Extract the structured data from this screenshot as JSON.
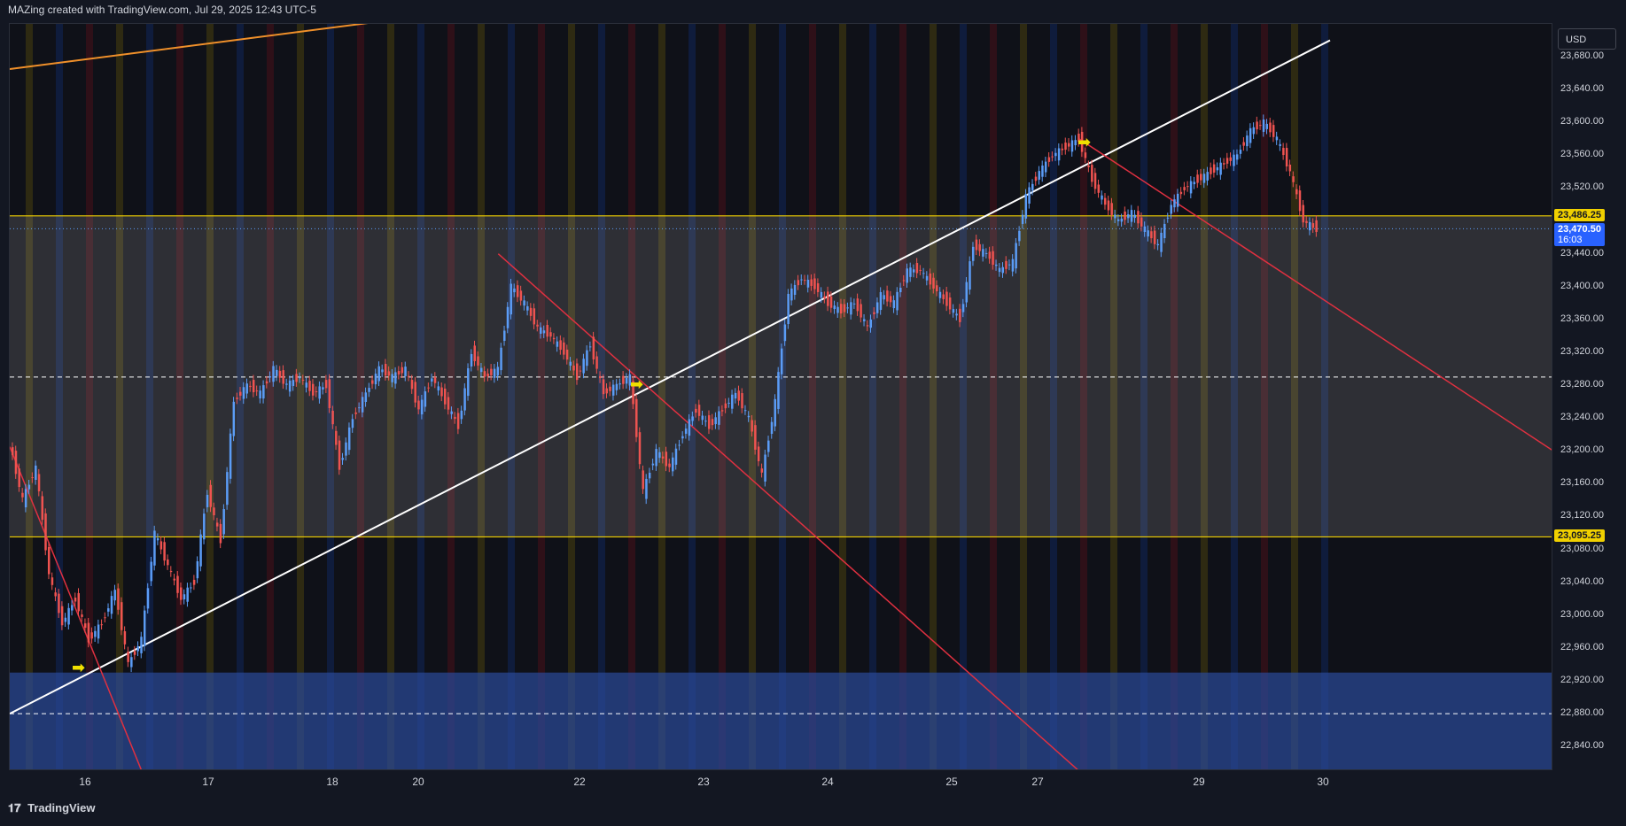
{
  "header": {
    "title": "MAZing created with TradingView.com, Jul 29, 2025 12:43 UTC-5"
  },
  "axis": {
    "currency": "USD"
  },
  "footer": {
    "brand": "TradingView",
    "logo_icon": "tradingview-logo-icon"
  },
  "colors": {
    "up": "#5b9cf6",
    "down": "#ef5350",
    "level": "#f0d000",
    "trend_white": "#ffffff",
    "trend_red": "#e03040",
    "trend_orange": "#f0902a",
    "blue_zone": "#2b4a9a"
  },
  "chart_data": {
    "type": "candlestick",
    "title": "",
    "xlabel": "",
    "ylabel": "",
    "ylim": [
      22810,
      23720
    ],
    "y_ticks": [
      "23,680.00",
      "23,640.00",
      "23,600.00",
      "23,560.00",
      "23,520.00",
      "23,440.00",
      "23,400.00",
      "23,360.00",
      "23,320.00",
      "23,280.00",
      "23,240.00",
      "23,200.00",
      "23,160.00",
      "23,120.00",
      "23,080.00",
      "23,040.00",
      "23,000.00",
      "22,960.00",
      "22,920.00",
      "22,880.00",
      "22,840.00"
    ],
    "x_ticks": [
      "16",
      "17",
      "18",
      "20",
      "22",
      "23",
      "24",
      "25",
      "27",
      "29",
      "30"
    ],
    "levels": [
      {
        "label": "23,486.25",
        "price": 23486.25,
        "color": "#f0d000"
      },
      {
        "label": "23,095.25",
        "price": 23095.25,
        "color": "#f0d000"
      }
    ],
    "last_price": {
      "label": "23,470.50",
      "countdown": "16:03",
      "price": 23470.5
    },
    "range_zone": {
      "top": 23486.25,
      "bottom": 23095.25,
      "mid_dashed": 23290
    },
    "demand_zone": {
      "top": 22930,
      "mid": 22880,
      "bottom": 22810
    },
    "trendlines": [
      {
        "name": "rising-support",
        "from": [
          0,
          22880
        ],
        "to": [
          100,
          23700
        ]
      },
      {
        "name": "orange-line",
        "from": [
          0,
          23665
        ],
        "to": [
          30,
          23727
        ]
      }
    ],
    "price_path": [
      [
        0,
        23210
      ],
      [
        1,
        23140
      ],
      [
        2,
        23180
      ],
      [
        3,
        23050
      ],
      [
        4,
        22990
      ],
      [
        5,
        23020
      ],
      [
        6,
        22970
      ],
      [
        7,
        22990
      ],
      [
        8,
        23030
      ],
      [
        9,
        22940
      ],
      [
        10,
        22970
      ],
      [
        11,
        23100
      ],
      [
        12,
        23060
      ],
      [
        13,
        23020
      ],
      [
        14,
        23040
      ],
      [
        15,
        23150
      ],
      [
        16,
        23090
      ],
      [
        17,
        23260
      ],
      [
        18,
        23280
      ],
      [
        19,
        23270
      ],
      [
        20,
        23300
      ],
      [
        21,
        23280
      ],
      [
        22,
        23290
      ],
      [
        23,
        23270
      ],
      [
        24,
        23280
      ],
      [
        25,
        23180
      ],
      [
        26,
        23240
      ],
      [
        27,
        23270
      ],
      [
        28,
        23300
      ],
      [
        29,
        23290
      ],
      [
        30,
        23300
      ],
      [
        31,
        23250
      ],
      [
        32,
        23290
      ],
      [
        33,
        23260
      ],
      [
        34,
        23230
      ],
      [
        35,
        23320
      ],
      [
        36,
        23290
      ],
      [
        37,
        23300
      ],
      [
        38,
        23400
      ],
      [
        39,
        23380
      ],
      [
        40,
        23350
      ],
      [
        41,
        23340
      ],
      [
        42,
        23320
      ],
      [
        43,
        23290
      ],
      [
        44,
        23330
      ],
      [
        45,
        23270
      ],
      [
        46,
        23280
      ],
      [
        47,
        23290
      ],
      [
        48,
        23150
      ],
      [
        49,
        23200
      ],
      [
        50,
        23180
      ],
      [
        51,
        23220
      ],
      [
        52,
        23250
      ],
      [
        53,
        23230
      ],
      [
        54,
        23250
      ],
      [
        55,
        23270
      ],
      [
        56,
        23240
      ],
      [
        57,
        23170
      ],
      [
        58,
        23260
      ],
      [
        59,
        23390
      ],
      [
        60,
        23410
      ],
      [
        61,
        23400
      ],
      [
        62,
        23380
      ],
      [
        63,
        23370
      ],
      [
        64,
        23380
      ],
      [
        65,
        23350
      ],
      [
        66,
        23390
      ],
      [
        67,
        23380
      ],
      [
        68,
        23420
      ],
      [
        69,
        23420
      ],
      [
        70,
        23400
      ],
      [
        71,
        23380
      ],
      [
        72,
        23360
      ],
      [
        73,
        23450
      ],
      [
        74,
        23440
      ],
      [
        75,
        23420
      ],
      [
        76,
        23430
      ],
      [
        77,
        23510
      ],
      [
        78,
        23540
      ],
      [
        79,
        23560
      ],
      [
        80,
        23570
      ],
      [
        81,
        23580
      ],
      [
        82,
        23530
      ],
      [
        83,
        23500
      ],
      [
        84,
        23480
      ],
      [
        85,
        23490
      ],
      [
        86,
        23470
      ],
      [
        87,
        23450
      ],
      [
        88,
        23500
      ],
      [
        89,
        23520
      ],
      [
        90,
        23530
      ],
      [
        91,
        23540
      ],
      [
        92,
        23550
      ],
      [
        93,
        23560
      ],
      [
        94,
        23590
      ],
      [
        95,
        23600
      ],
      [
        96,
        23580
      ],
      [
        97,
        23540
      ],
      [
        98,
        23480
      ],
      [
        99,
        23470
      ]
    ]
  }
}
